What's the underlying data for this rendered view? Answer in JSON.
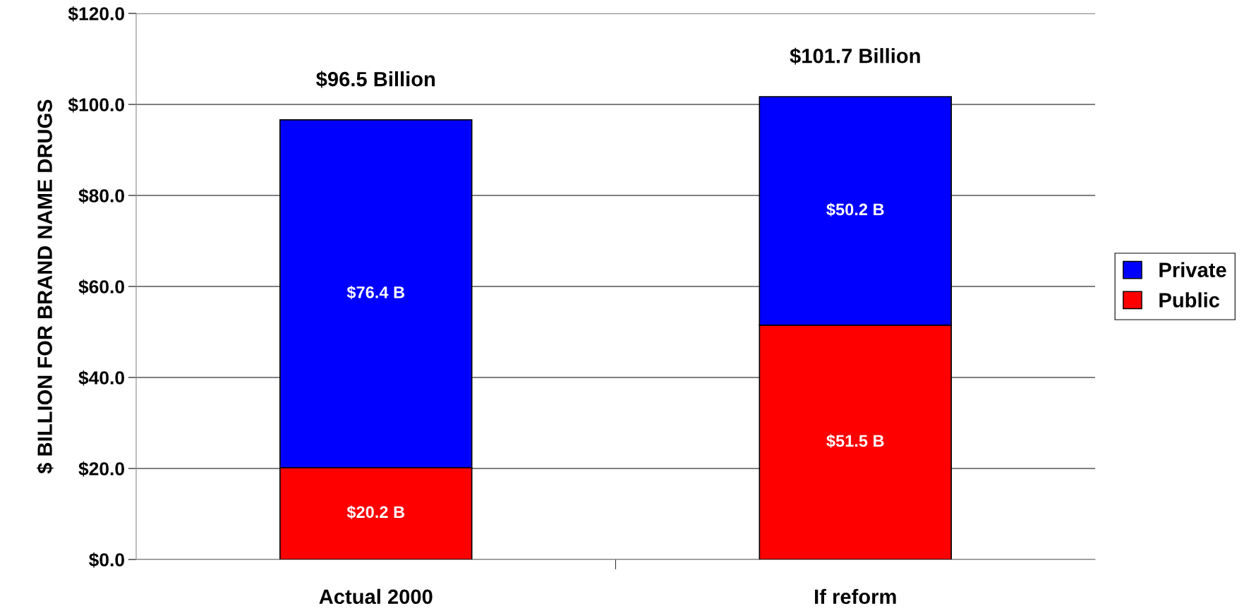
{
  "chart_data": {
    "type": "bar",
    "stacked": true,
    "ylabel": "$ BILLION FOR BRAND NAME DRUGS",
    "categories": [
      "Actual 2000",
      "If reform"
    ],
    "series": [
      {
        "name": "Public",
        "color": "#ff0000",
        "values": [
          20.2,
          51.5
        ],
        "value_labels": [
          "$20.2 B",
          "$51.5 B"
        ]
      },
      {
        "name": "Private",
        "color": "#0000ff",
        "values": [
          76.4,
          50.2
        ],
        "value_labels": [
          "$76.4 B",
          "$50.2 B"
        ]
      }
    ],
    "totals": [
      "$96.5 Billion",
      "$101.7 Billion"
    ],
    "ylim": [
      0,
      120
    ],
    "yticks": [
      {
        "value": 0,
        "label": "$0.0"
      },
      {
        "value": 20,
        "label": "$20.0"
      },
      {
        "value": 40,
        "label": "$40.0"
      },
      {
        "value": 60,
        "label": "$60.0"
      },
      {
        "value": 80,
        "label": "$80.0"
      },
      {
        "value": 100,
        "label": "$100.0"
      },
      {
        "value": 120,
        "label": "$120.0"
      }
    ],
    "grid": "y",
    "legend": "right"
  }
}
